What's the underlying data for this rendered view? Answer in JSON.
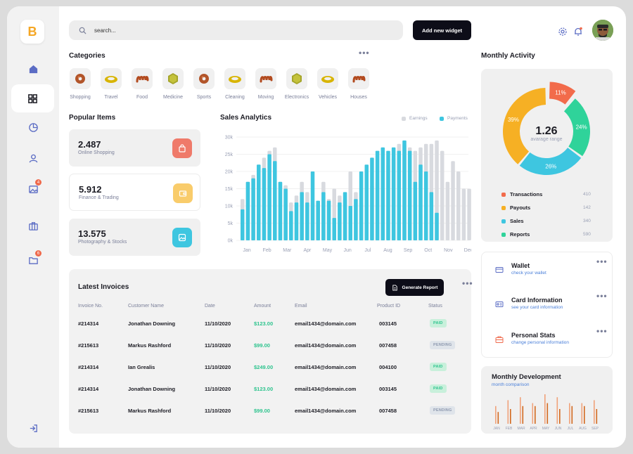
{
  "app": {
    "logo_letter": "B"
  },
  "header": {
    "search_placeholder": "search...",
    "add_widget_label": "Add new widget"
  },
  "sidebar": {
    "items": [
      {
        "icon": "home-icon"
      },
      {
        "icon": "dashboard-icon",
        "active": true
      },
      {
        "icon": "pie-chart-icon"
      },
      {
        "icon": "user-icon"
      },
      {
        "icon": "image-icon",
        "badge": "4"
      },
      {
        "icon": "briefcase-icon"
      },
      {
        "icon": "folder-icon",
        "badge": "6"
      },
      {
        "icon": "logout-icon"
      }
    ]
  },
  "categories": {
    "title": "Categories",
    "items": [
      {
        "label": "Shopping",
        "shape": "donut"
      },
      {
        "label": "Travel",
        "shape": "ring"
      },
      {
        "label": "Food",
        "shape": "spring"
      },
      {
        "label": "Medicine",
        "shape": "hex"
      },
      {
        "label": "Sports",
        "shape": "donut"
      },
      {
        "label": "Cleaning",
        "shape": "ring"
      },
      {
        "label": "Moving",
        "shape": "spring"
      },
      {
        "label": "Electronics",
        "shape": "hex"
      },
      {
        "label": "Vehicles",
        "shape": "ring"
      },
      {
        "label": "Houses",
        "shape": "spring"
      }
    ]
  },
  "popular": {
    "title": "Popular Items",
    "cards": [
      {
        "value": "2.487",
        "label": "Online Shopping",
        "icon": "bag-icon",
        "color": "#ef7a6a"
      },
      {
        "value": "5.912",
        "label": "Finance & Trading",
        "icon": "wallet-icon",
        "color": "#f9cc6b"
      },
      {
        "value": "13.575",
        "label": "Photography & Stocks",
        "icon": "photo-icon",
        "color": "#3ec6e0"
      }
    ]
  },
  "sales": {
    "title": "Sales Analytics",
    "legend": {
      "earnings": "Earnings",
      "payments": "Payments"
    }
  },
  "chart_data": [
    {
      "type": "bar",
      "title": "Sales Analytics",
      "y_ticks": [
        "0k",
        "5k",
        "10k",
        "15k",
        "20k",
        "25k",
        "30k"
      ],
      "ylim": [
        0,
        30
      ],
      "x_labels": [
        "Jan",
        "Feb",
        "Mar",
        "Apr",
        "May",
        "Jun",
        "Jul",
        "Aug",
        "Sep",
        "Oct",
        "Nov",
        "Dec"
      ],
      "series": [
        {
          "name": "Earnings",
          "color": "#d8dadf",
          "values": [
            12,
            17,
            19,
            22,
            24,
            26,
            27,
            17,
            16,
            11,
            13,
            17,
            14,
            11,
            11,
            17,
            12,
            15,
            13,
            12,
            20,
            14,
            11,
            19,
            16,
            17,
            16,
            22,
            24,
            28,
            28,
            27,
            26,
            27,
            28,
            28,
            29,
            26,
            17,
            23,
            20,
            15,
            15
          ]
        },
        {
          "name": "Payments",
          "color": "#3ec6e0",
          "values": [
            9,
            17,
            18,
            22,
            21,
            25,
            23,
            17,
            15,
            8.5,
            11,
            14,
            11,
            20,
            11.5,
            14,
            11.5,
            6.5,
            11,
            14,
            10,
            12,
            20,
            22,
            24,
            26,
            27,
            26,
            27,
            26,
            29,
            26,
            17,
            22,
            20,
            14,
            8
          ]
        }
      ],
      "grid": true
    },
    {
      "type": "pie",
      "title": "Monthly Activity",
      "center_value": "1.26",
      "center_label": "avarage range",
      "slices": [
        {
          "name": "Transactions",
          "value": 11,
          "label": "11%",
          "color": "#f26b4b"
        },
        {
          "name": "Reports",
          "value": 24,
          "label": "24%",
          "color": "#2fd39a"
        },
        {
          "name": "Sales",
          "value": 26,
          "label": "26%",
          "color": "#3ec6e0"
        },
        {
          "name": "Payouts",
          "value": 39,
          "label": "39%",
          "color": "#f6b024"
        }
      ]
    },
    {
      "type": "bar",
      "title": "Monthly Development",
      "x_labels": [
        "JAN",
        "FEB",
        "MAR",
        "APR",
        "MAY",
        "JUN",
        "JUL",
        "AUG",
        "SEP"
      ],
      "series": [
        {
          "name": "a",
          "color": "#f0a27a",
          "values": [
            6,
            8,
            9,
            7,
            10,
            9,
            7,
            7,
            8
          ]
        },
        {
          "name": "b",
          "color": "#d2691e",
          "values": [
            4,
            5,
            6,
            6,
            7,
            5,
            6,
            6,
            5
          ]
        }
      ]
    }
  ],
  "invoices": {
    "title": "Latest Invoices",
    "generate_label": "Generate Report",
    "columns": [
      "Invoice No.",
      "Customer Name",
      "Date",
      "Amount",
      "Email",
      "Product ID",
      "Status"
    ],
    "rows": [
      {
        "no": "#214314",
        "name": "Jonathan Downing",
        "date": "11/10/2020",
        "amount": "$123.00",
        "email": "email1434@domain.com",
        "pid": "003145",
        "status": "PAID"
      },
      {
        "no": "#215613",
        "name": "Markus Rashford",
        "date": "11/10/2020",
        "amount": "$99.00",
        "email": "email1434@domain.com",
        "pid": "007458",
        "status": "PENDING"
      },
      {
        "no": "#214314",
        "name": "Ian Grealis",
        "date": "11/10/2020",
        "amount": "$249.00",
        "email": "email1434@domain.com",
        "pid": "004100",
        "status": "PAID"
      },
      {
        "no": "#214314",
        "name": "Jonathan Downing",
        "date": "11/10/2020",
        "amount": "$123.00",
        "email": "email1434@domain.com",
        "pid": "003145",
        "status": "PAID"
      },
      {
        "no": "#215613",
        "name": "Markus Rashford",
        "date": "11/10/2020",
        "amount": "$99.00",
        "email": "email1434@domain.com",
        "pid": "007458",
        "status": "PENDING"
      }
    ]
  },
  "activity": {
    "title": "Monthly Activity",
    "legend": [
      {
        "name": "Transactions",
        "value": "410",
        "color": "#f26b4b"
      },
      {
        "name": "Payouts",
        "value": "142",
        "color": "#f6b024"
      },
      {
        "name": "Sales",
        "value": "340",
        "color": "#3ec6e0"
      },
      {
        "name": "Reports",
        "value": "590",
        "color": "#2fd39a"
      }
    ]
  },
  "info_cards": [
    {
      "title": "Wallet",
      "sub": "check your wallet",
      "icon": "card-icon"
    },
    {
      "title": "Card Information",
      "sub": "see your card information",
      "icon": "id-card-icon"
    },
    {
      "title": "Personal Stats",
      "sub": "change personal information",
      "icon": "briefcase-icon"
    }
  ],
  "development": {
    "title": "Monthly Development",
    "sub": "month comparison"
  }
}
